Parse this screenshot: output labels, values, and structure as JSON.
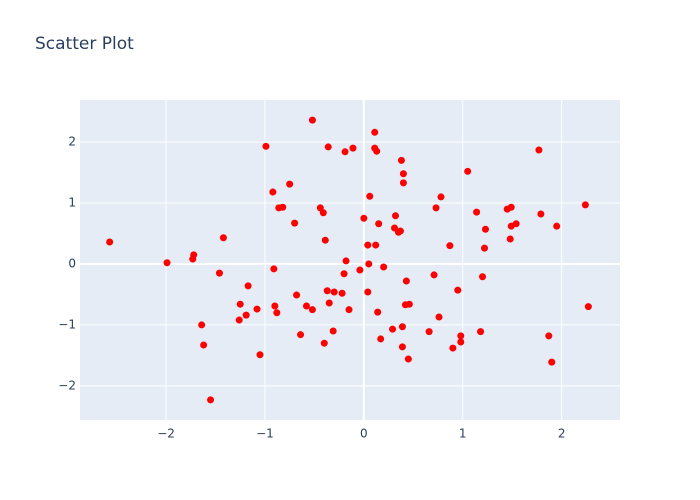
{
  "chart_data": {
    "type": "scatter",
    "title": "Scatter Plot",
    "color": "#ff0000",
    "grid": true,
    "xlim": [
      -2.87,
      2.59
    ],
    "ylim": [
      -2.56,
      2.69
    ],
    "xticks": [
      {
        "value": -2,
        "label": "−2"
      },
      {
        "value": -1,
        "label": "−1"
      },
      0,
      1,
      2
    ],
    "yticks": [
      {
        "value": -2,
        "label": "−2"
      },
      {
        "value": -1,
        "label": "−1"
      },
      0,
      1,
      2
    ],
    "x": [
      -2.57,
      -1.99,
      -1.73,
      -1.72,
      -1.64,
      -1.62,
      -1.55,
      -1.46,
      -1.42,
      -1.25,
      -1.26,
      -1.19,
      -1.17,
      -1.08,
      -1.05,
      -0.99,
      -0.92,
      -0.91,
      -0.9,
      -0.88,
      -0.86,
      -0.82,
      -0.75,
      -0.7,
      -0.68,
      -0.64,
      -0.58,
      -0.52,
      -0.52,
      -0.44,
      -0.41,
      -0.4,
      -0.39,
      -0.37,
      -0.36,
      -0.35,
      -0.3,
      -0.31,
      -0.22,
      -0.2,
      -0.19,
      -0.18,
      -0.15,
      -0.11,
      -0.04,
      0.0,
      0.04,
      0.04,
      0.05,
      0.06,
      0.11,
      0.11,
      0.13,
      0.12,
      0.14,
      0.15,
      0.17,
      0.2,
      0.29,
      0.31,
      0.32,
      0.35,
      0.37,
      0.38,
      0.39,
      0.39,
      0.4,
      0.4,
      0.43,
      0.42,
      0.46,
      0.45,
      0.66,
      0.71,
      0.73,
      0.76,
      0.78,
      0.87,
      0.9,
      0.95,
      0.98,
      0.98,
      1.05,
      1.14,
      1.18,
      1.2,
      1.22,
      1.23,
      1.45,
      1.48,
      1.49,
      1.49,
      1.54,
      1.77,
      1.79,
      1.87,
      1.9,
      1.95,
      2.24,
      2.27
    ],
    "values": [
      0.36,
      0.02,
      0.08,
      0.15,
      -1.0,
      -1.33,
      -2.23,
      -0.15,
      0.43,
      -0.66,
      -0.92,
      -0.84,
      -0.36,
      -0.74,
      -1.49,
      1.93,
      1.18,
      -0.08,
      -0.69,
      -0.8,
      0.92,
      0.93,
      1.31,
      0.67,
      -0.51,
      -1.16,
      -0.69,
      -0.75,
      2.36,
      0.92,
      0.84,
      -1.3,
      0.39,
      -0.44,
      1.92,
      -0.64,
      -0.46,
      -1.1,
      -0.48,
      -0.16,
      1.84,
      0.05,
      -0.75,
      1.9,
      -0.1,
      0.75,
      0.31,
      -0.46,
      0.0,
      1.11,
      2.16,
      1.9,
      1.85,
      0.31,
      -0.79,
      0.66,
      -1.23,
      -0.05,
      -1.07,
      0.59,
      0.79,
      0.52,
      0.54,
      1.7,
      -1.36,
      -1.03,
      1.33,
      1.48,
      -0.28,
      -0.67,
      -0.66,
      -1.56,
      -1.11,
      -0.18,
      0.92,
      -0.87,
      1.1,
      0.3,
      -1.38,
      -0.43,
      -1.18,
      -1.28,
      1.52,
      0.85,
      -1.11,
      -0.21,
      0.26,
      0.57,
      0.9,
      0.41,
      0.62,
      0.93,
      0.66,
      1.87,
      0.82,
      -1.18,
      -1.61,
      0.62,
      0.97,
      -0.7
    ]
  }
}
